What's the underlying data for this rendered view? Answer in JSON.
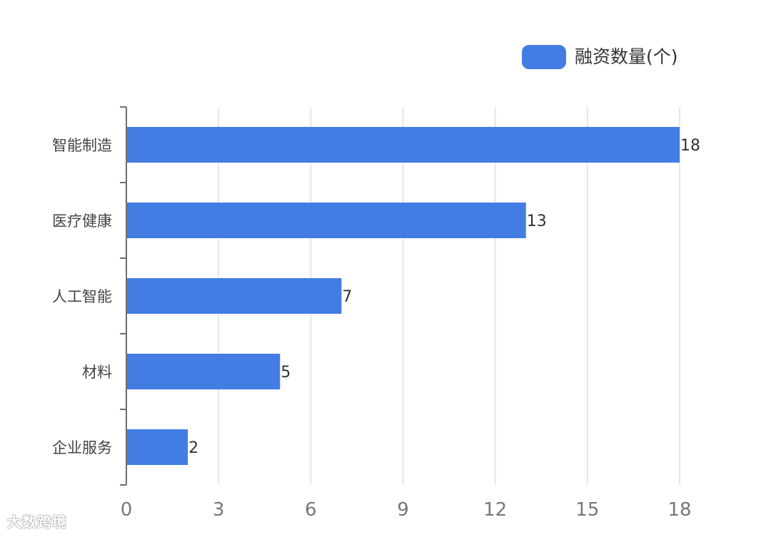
{
  "chart_data": {
    "type": "bar",
    "orientation": "horizontal",
    "categories": [
      "智能制造",
      "医疗健康",
      "人工智能",
      "材料",
      "企业服务"
    ],
    "series": [
      {
        "name": "融资数量(个)",
        "values": [
          18,
          13,
          7,
          5,
          2
        ],
        "color": "#437ce3"
      }
    ],
    "xlim": [
      0,
      18
    ],
    "xticks": [
      0,
      3,
      6,
      9,
      12,
      15,
      18
    ],
    "grid": true,
    "legend": "top-right",
    "data_labels": true
  },
  "watermark": "大数跨境"
}
